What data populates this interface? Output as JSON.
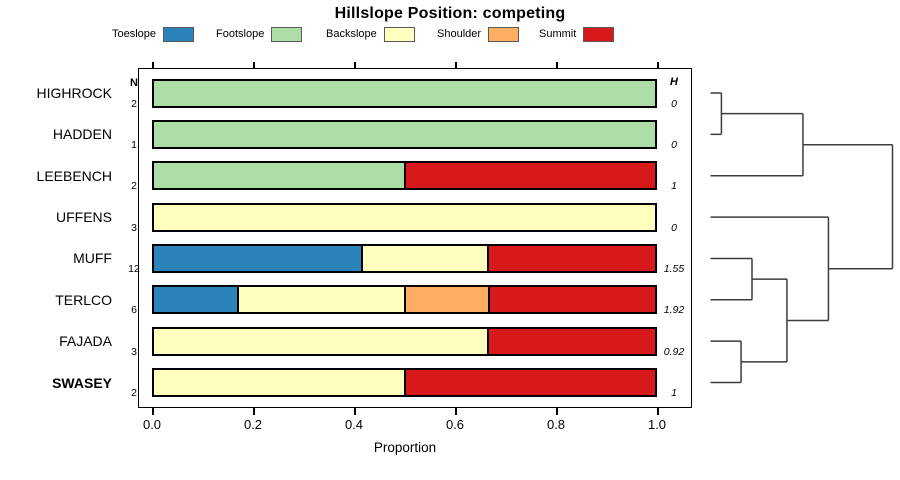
{
  "title": "Hillslope Position: competing",
  "legend": {
    "entries": [
      {
        "label": "Toeslope",
        "color": "#2B83BA"
      },
      {
        "label": "Footslope",
        "color": "#ABDDA4"
      },
      {
        "label": "Backslope",
        "color": "#FFFFBF"
      },
      {
        "label": "Shoulder",
        "color": "#FDAE61"
      },
      {
        "label": "Summit",
        "color": "#D7191C"
      }
    ]
  },
  "columns": {
    "n_header": "N",
    "h_header": "H"
  },
  "x_axis": {
    "label": "Proportion",
    "tick_labels": [
      "0.0",
      "0.2",
      "0.4",
      "0.6",
      "0.8",
      "1.0"
    ],
    "tick_values": [
      0,
      0.2,
      0.4,
      0.6,
      0.8,
      1.0
    ],
    "range": [
      0,
      1
    ]
  },
  "chart_data": {
    "type": "bar",
    "orientation": "horizontal-stacked",
    "title": "Hillslope Position: competing",
    "xlabel": "Proportion",
    "xlim": [
      0,
      1
    ],
    "categories": [
      "Toeslope",
      "Footslope",
      "Backslope",
      "Shoulder",
      "Summit"
    ],
    "colors": {
      "Toeslope": "#2B83BA",
      "Footslope": "#ABDDA4",
      "Backslope": "#FFFFBF",
      "Shoulder": "#FDAE61",
      "Summit": "#D7191C"
    },
    "rows": [
      {
        "name": "HIGHROCK",
        "n": "2",
        "h": "0",
        "bold": false,
        "segments": [
          {
            "category": "Footslope",
            "proportion": 1.0
          }
        ]
      },
      {
        "name": "HADDEN",
        "n": "1",
        "h": "0",
        "bold": false,
        "segments": [
          {
            "category": "Footslope",
            "proportion": 1.0
          }
        ]
      },
      {
        "name": "LEEBENCH",
        "n": "2",
        "h": "1",
        "bold": false,
        "segments": [
          {
            "category": "Footslope",
            "proportion": 0.5
          },
          {
            "category": "Summit",
            "proportion": 0.5
          }
        ]
      },
      {
        "name": "UFFENS",
        "n": "3",
        "h": "0",
        "bold": false,
        "segments": [
          {
            "category": "Backslope",
            "proportion": 1.0
          }
        ]
      },
      {
        "name": "MUFF",
        "n": "12",
        "h": "1.55",
        "bold": false,
        "segments": [
          {
            "category": "Toeslope",
            "proportion": 0.4167
          },
          {
            "category": "Backslope",
            "proportion": 0.25
          },
          {
            "category": "Summit",
            "proportion": 0.3333
          }
        ]
      },
      {
        "name": "TERLCO",
        "n": "6",
        "h": "1.92",
        "bold": false,
        "segments": [
          {
            "category": "Toeslope",
            "proportion": 0.1667
          },
          {
            "category": "Backslope",
            "proportion": 0.3333
          },
          {
            "category": "Shoulder",
            "proportion": 0.1667
          },
          {
            "category": "Summit",
            "proportion": 0.3333
          }
        ]
      },
      {
        "name": "FAJADA",
        "n": "3",
        "h": "0.92",
        "bold": false,
        "segments": [
          {
            "category": "Backslope",
            "proportion": 0.6667
          },
          {
            "category": "Summit",
            "proportion": 0.3333
          }
        ]
      },
      {
        "name": "SWASEY",
        "n": "2",
        "h": "1",
        "bold": true,
        "segments": [
          {
            "category": "Backslope",
            "proportion": 0.5
          },
          {
            "category": "Summit",
            "proportion": 0.5
          }
        ]
      }
    ],
    "dendrogram": {
      "orientation": "right",
      "leaves": [
        "HIGHROCK",
        "HADDEN",
        "LEEBENCH",
        "UFFENS",
        "MUFF",
        "TERLCO",
        "FAJADA",
        "SWASEY"
      ],
      "merges": [
        {
          "id": "c1",
          "a": "HIGHROCK",
          "b": "HADDEN",
          "height": 0.06
        },
        {
          "id": "c2",
          "a": "c1",
          "b": "LEEBENCH",
          "height": 0.508
        },
        {
          "id": "c3",
          "a": "MUFF",
          "b": "TERLCO",
          "height": 0.228
        },
        {
          "id": "c4",
          "a": "FAJADA",
          "b": "SWASEY",
          "height": 0.168
        },
        {
          "id": "c5",
          "a": "c3",
          "b": "c4",
          "height": 0.42
        },
        {
          "id": "c6",
          "a": "UFFENS",
          "b": "c5",
          "height": 0.648
        },
        {
          "id": "root",
          "a": "c2",
          "b": "c6",
          "height": 1.0
        }
      ]
    }
  }
}
